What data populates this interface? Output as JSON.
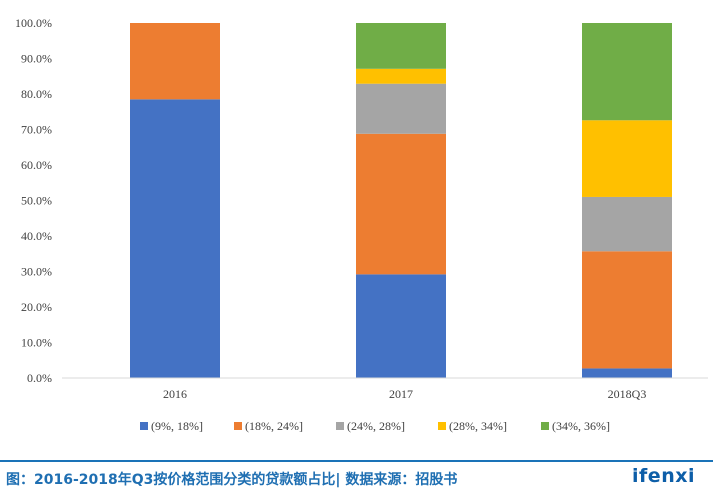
{
  "chart_data": {
    "type": "bar",
    "stacked": true,
    "percent": true,
    "categories": [
      "2016",
      "2017",
      "2018Q3"
    ],
    "series": [
      {
        "name": "(9%, 18%]",
        "color": "#4472C4",
        "values": [
          78.5,
          29.2,
          2.7
        ]
      },
      {
        "name": "(18%, 24%]",
        "color": "#ED7D31",
        "values": [
          21.5,
          39.6,
          33.0
        ]
      },
      {
        "name": "(24%, 28%]",
        "color": "#A5A5A5",
        "values": [
          0,
          14.1,
          15.3
        ]
      },
      {
        "name": "(28%, 34%]",
        "color": "#FFC000",
        "values": [
          0,
          4.2,
          21.6
        ]
      },
      {
        "name": "(34%, 36%]",
        "color": "#70AD47",
        "values": [
          0,
          12.9,
          27.4
        ]
      }
    ],
    "yticks": [
      "0.0%",
      "10.0%",
      "20.0%",
      "30.0%",
      "40.0%",
      "50.0%",
      "60.0%",
      "70.0%",
      "80.0%",
      "90.0%",
      "100.0%"
    ],
    "ylim": [
      0,
      100
    ],
    "legend_position": "bottom",
    "grid": false
  },
  "footer": {
    "caption": "图：2016-2018年Q3按价格范围分类的贷款额占比| 数据来源：招股书",
    "brand": "ifenxi"
  }
}
